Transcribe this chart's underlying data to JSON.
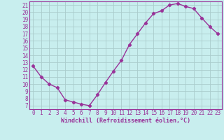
{
  "x": [
    0,
    1,
    2,
    3,
    4,
    5,
    6,
    7,
    8,
    9,
    10,
    11,
    12,
    13,
    14,
    15,
    16,
    17,
    18,
    19,
    20,
    21,
    22,
    23
  ],
  "y": [
    12.5,
    11.0,
    10.0,
    9.5,
    7.8,
    7.5,
    7.2,
    7.0,
    8.5,
    10.2,
    11.8,
    13.3,
    15.5,
    17.0,
    18.5,
    19.8,
    20.2,
    21.0,
    21.2,
    20.8,
    20.5,
    19.2,
    18.0,
    17.0
  ],
  "line_color": "#993399",
  "marker": "D",
  "marker_size": 2.2,
  "line_width": 1.0,
  "bg_color": "#c8eeee",
  "grid_color": "#aacccc",
  "xlabel": "Windchill (Refroidissement éolien,°C)",
  "xlabel_color": "#993399",
  "tick_color": "#993399",
  "xlim": [
    -0.5,
    23.5
  ],
  "ylim": [
    6.5,
    21.5
  ],
  "yticks": [
    7,
    8,
    9,
    10,
    11,
    12,
    13,
    14,
    15,
    16,
    17,
    18,
    19,
    20,
    21
  ],
  "xticks": [
    0,
    1,
    2,
    3,
    4,
    5,
    6,
    7,
    8,
    9,
    10,
    11,
    12,
    13,
    14,
    15,
    16,
    17,
    18,
    19,
    20,
    21,
    22,
    23
  ],
  "font_size": 5.5,
  "xlabel_fontsize": 6.0
}
